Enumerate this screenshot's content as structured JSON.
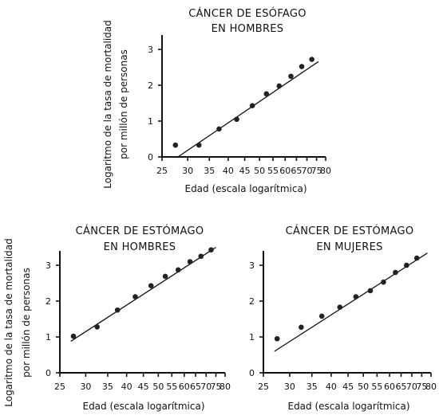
{
  "chart_data": [
    {
      "type": "scatter",
      "title": [
        "CÁNCER DE ESÓFAGO",
        "EN HOMBRES"
      ],
      "xlabel": "Edad (escala logarítmica)",
      "ylabel": [
        "Logaritmo de la tasa de mortalidad",
        "por millón de personas"
      ],
      "x_scale": "log",
      "xlim": [
        25,
        80
      ],
      "ylim": [
        0,
        3.4
      ],
      "x_ticks": [
        25,
        30,
        35,
        40,
        45,
        50,
        55,
        60,
        65,
        70,
        75,
        80
      ],
      "y_ticks": [
        0,
        1,
        2,
        3
      ],
      "points": {
        "x": [
          27.5,
          32.5,
          37.5,
          42.5,
          47.5,
          52.5,
          57.5,
          62.5,
          67.5,
          72.5
        ],
        "y": [
          0.33,
          0.33,
          0.78,
          1.05,
          1.43,
          1.76,
          1.98,
          2.25,
          2.52,
          2.72
        ]
      },
      "fit_line": {
        "x": [
          28,
          76
        ],
        "y": [
          0.0,
          2.66
        ]
      }
    },
    {
      "type": "scatter",
      "title": [
        "CÁNCER DE ESTÓMAGO",
        "EN HOMBRES"
      ],
      "xlabel": "Edad (escala logarítmica)",
      "ylabel": [
        "Logaritmo de la tasa de mortalidad",
        "por millón de personas"
      ],
      "x_scale": "log",
      "xlim": [
        25,
        80
      ],
      "ylim": [
        0,
        3.4
      ],
      "x_ticks": [
        25,
        30,
        35,
        40,
        45,
        50,
        55,
        60,
        65,
        70,
        75,
        80
      ],
      "y_ticks": [
        0,
        1,
        2,
        3
      ],
      "points": {
        "x": [
          27.5,
          32.5,
          37.5,
          42.5,
          47.5,
          52.5,
          57.5,
          62.5,
          67.5,
          72.5
        ],
        "y": [
          1.02,
          1.28,
          1.75,
          2.12,
          2.43,
          2.69,
          2.87,
          3.1,
          3.25,
          3.43
        ]
      },
      "fit_line": {
        "x": [
          27,
          75
        ],
        "y": [
          0.88,
          3.5
        ]
      }
    },
    {
      "type": "scatter",
      "title": [
        "CÁNCER DE ESTÓMAGO",
        "EN MUJERES"
      ],
      "xlabel": "Edad (escala logarítmica)",
      "ylabel": [],
      "x_scale": "log",
      "xlim": [
        25,
        80
      ],
      "ylim": [
        0,
        3.4
      ],
      "x_ticks": [
        25,
        30,
        35,
        40,
        45,
        50,
        55,
        60,
        65,
        70,
        75,
        80
      ],
      "y_ticks": [
        0,
        1,
        2,
        3
      ],
      "points": {
        "x": [
          27.5,
          32.5,
          37.5,
          42.5,
          47.5,
          52.5,
          57.5,
          62.5,
          67.5,
          72.5
        ],
        "y": [
          0.95,
          1.27,
          1.58,
          1.83,
          2.12,
          2.29,
          2.53,
          2.8,
          3.0,
          3.2
        ]
      },
      "fit_line": {
        "x": [
          27,
          78
        ],
        "y": [
          0.6,
          3.34
        ]
      }
    }
  ]
}
